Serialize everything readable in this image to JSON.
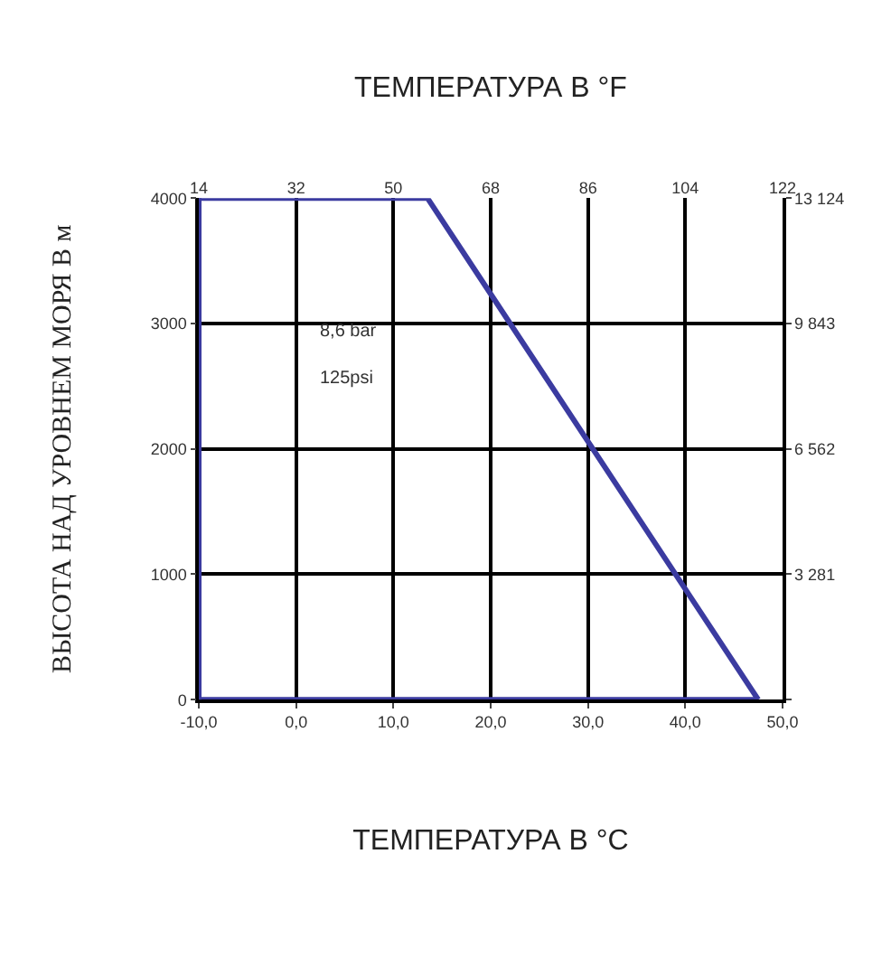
{
  "chart_data": {
    "type": "line",
    "xlabel": "ТЕМПЕРАТУРА В °C",
    "x2label": "ТЕМПЕРАТУРА В °F",
    "ylabel": "ВЫСОТА НАД УРОВНЕМ МОРЯ В м",
    "annotations": [
      "8,6 bar",
      "125psi"
    ],
    "series": [
      {
        "color": "#3b3ba0",
        "x": [
          -10,
          13.5,
          47.5
        ],
        "values": [
          4000,
          4000,
          0
        ]
      },
      {
        "color": "#3b3ba0",
        "x": [
          -10,
          47.5
        ],
        "values": [
          0,
          0
        ]
      }
    ],
    "ref_lines": [
      {
        "axis": "x",
        "value": -10,
        "color": "#3b3ba0",
        "line_style": "solid"
      }
    ],
    "xlim": [
      -10,
      50
    ],
    "xticks": [
      {
        "value": -10,
        "label": "-10,0"
      },
      {
        "value": 0,
        "label": "0,0"
      },
      {
        "value": 10,
        "label": "10,0"
      },
      {
        "value": 20,
        "label": "20,0"
      },
      {
        "value": 30,
        "label": "30,0"
      },
      {
        "value": 40,
        "label": "40,0"
      },
      {
        "value": 50,
        "label": "50,0"
      }
    ],
    "x2lim": [
      14,
      122
    ],
    "x2ticks": [
      14,
      32,
      50,
      68,
      86,
      104,
      122
    ],
    "ylim": [
      0,
      4000
    ],
    "yticks": [
      0,
      1000,
      2000,
      3000,
      4000
    ],
    "y2lim": [
      0,
      13124
    ],
    "y2ticks": [
      {
        "value": 0,
        "label": null
      },
      {
        "value": 3281,
        "label": "3 281"
      },
      {
        "value": 6562,
        "label": "6 562"
      },
      {
        "value": 9843,
        "label": "9 843"
      },
      {
        "value": 13124,
        "label": "13 124"
      }
    ],
    "grid": true,
    "marker": "none",
    "line_style": "solid"
  }
}
